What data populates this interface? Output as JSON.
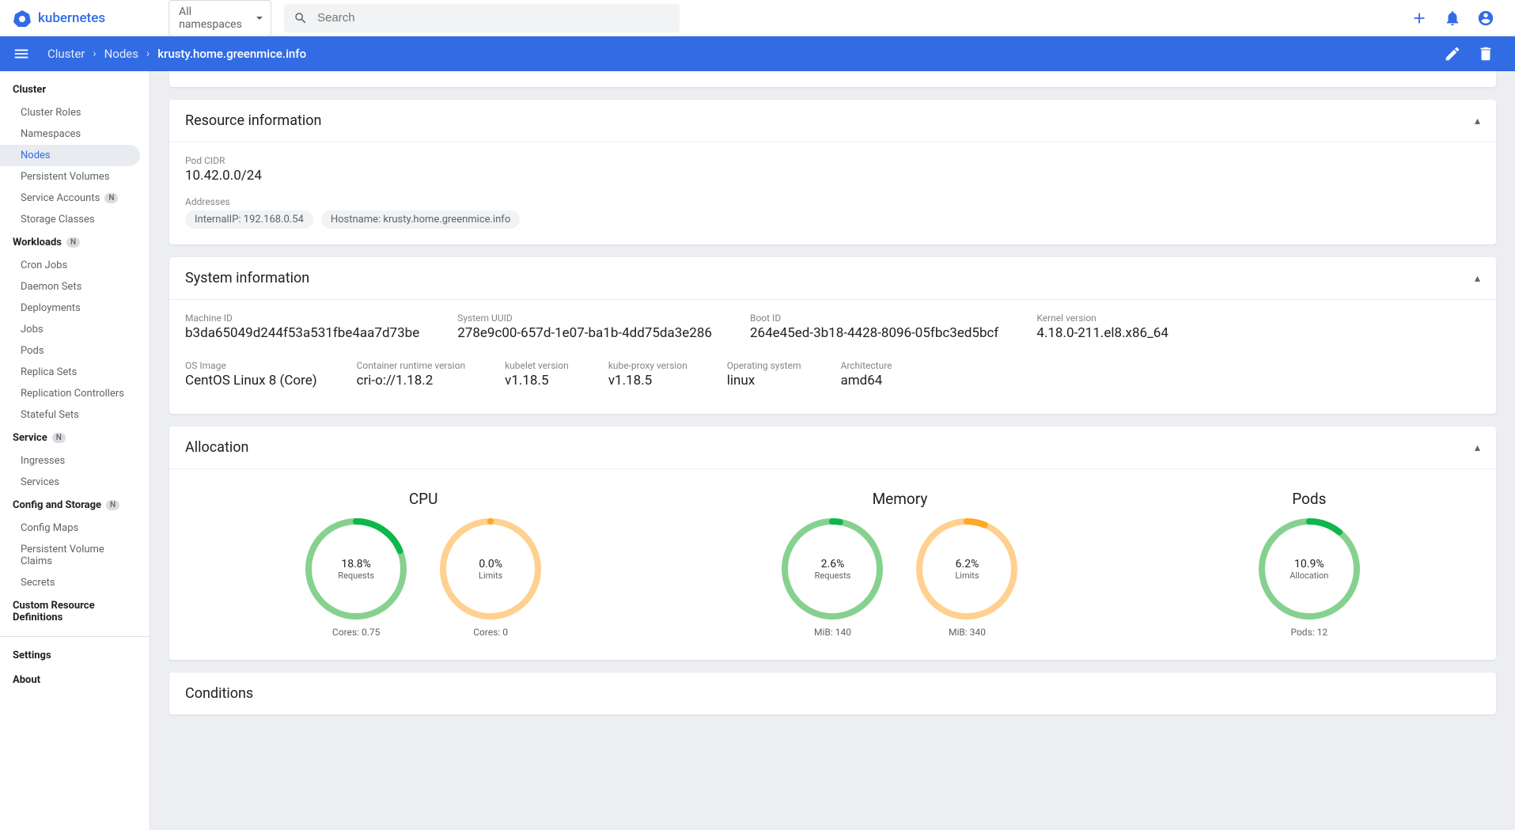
{
  "app": {
    "title": "kubernetes"
  },
  "header": {
    "namespace_selector": "All namespaces",
    "search_placeholder": "Search"
  },
  "breadcrumb": [
    {
      "label": "Cluster"
    },
    {
      "label": "Nodes"
    },
    {
      "label": "krusty.home.greenmice.info"
    }
  ],
  "sidebar": {
    "sections": [
      {
        "title": "Cluster",
        "badge": null,
        "items": [
          {
            "label": "Cluster Roles",
            "active": false
          },
          {
            "label": "Namespaces",
            "active": false
          },
          {
            "label": "Nodes",
            "active": true
          },
          {
            "label": "Persistent Volumes",
            "active": false
          },
          {
            "label": "Service Accounts",
            "active": false,
            "badge": "N"
          },
          {
            "label": "Storage Classes",
            "active": false
          }
        ]
      },
      {
        "title": "Workloads",
        "badge": "N",
        "items": [
          {
            "label": "Cron Jobs"
          },
          {
            "label": "Daemon Sets"
          },
          {
            "label": "Deployments"
          },
          {
            "label": "Jobs"
          },
          {
            "label": "Pods"
          },
          {
            "label": "Replica Sets"
          },
          {
            "label": "Replication Controllers"
          },
          {
            "label": "Stateful Sets"
          }
        ]
      },
      {
        "title": "Service",
        "badge": "N",
        "items": [
          {
            "label": "Ingresses"
          },
          {
            "label": "Services"
          }
        ]
      },
      {
        "title": "Config and Storage",
        "badge": "N",
        "items": [
          {
            "label": "Config Maps"
          },
          {
            "label": "Persistent Volume Claims"
          },
          {
            "label": "Secrets"
          }
        ]
      },
      {
        "title": "Custom Resource Definitions",
        "badge": null,
        "items": []
      }
    ],
    "footer": [
      {
        "label": "Settings"
      },
      {
        "label": "About"
      }
    ]
  },
  "resource_info": {
    "title": "Resource information",
    "pod_cidr_label": "Pod CIDR",
    "pod_cidr_value": "10.42.0.0/24",
    "addresses_label": "Addresses",
    "addresses": [
      "InternalIP: 192.168.0.54",
      "Hostname: krusty.home.greenmice.info"
    ]
  },
  "system_info": {
    "title": "System information",
    "row1": [
      {
        "label": "Machine ID",
        "value": "b3da65049d244f53a531fbe4aa7d73be"
      },
      {
        "label": "System UUID",
        "value": "278e9c00-657d-1e07-ba1b-4dd75da3e286"
      },
      {
        "label": "Boot ID",
        "value": "264e45ed-3b18-4428-8096-05fbc3ed5bcf"
      },
      {
        "label": "Kernel version",
        "value": "4.18.0-211.el8.x86_64"
      }
    ],
    "row2": [
      {
        "label": "OS Image",
        "value": "CentOS Linux 8 (Core)"
      },
      {
        "label": "Container runtime version",
        "value": "cri-o://1.18.2"
      },
      {
        "label": "kubelet version",
        "value": "v1.18.5"
      },
      {
        "label": "kube-proxy version",
        "value": "v1.18.5"
      },
      {
        "label": "Operating system",
        "value": "linux"
      },
      {
        "label": "Architecture",
        "value": "amd64"
      }
    ]
  },
  "allocation": {
    "title": "Allocation",
    "groups": [
      {
        "title": "CPU",
        "charts": [
          {
            "percent": 18.8,
            "percent_label": "18.8%",
            "sublabel": "Requests",
            "bottom": "Cores: 0.75",
            "ring_color": "#86d18f",
            "fill_color": "#0db74b"
          },
          {
            "percent": 0.0,
            "percent_label": "0.0%",
            "sublabel": "Limits",
            "bottom": "Cores: 0",
            "ring_color": "#ffd08f",
            "fill_color": "#ffa726"
          }
        ]
      },
      {
        "title": "Memory",
        "charts": [
          {
            "percent": 2.6,
            "percent_label": "2.6%",
            "sublabel": "Requests",
            "bottom": "MiB: 140",
            "ring_color": "#86d18f",
            "fill_color": "#0db74b"
          },
          {
            "percent": 6.2,
            "percent_label": "6.2%",
            "sublabel": "Limits",
            "bottom": "MiB: 340",
            "ring_color": "#ffd08f",
            "fill_color": "#ffa726"
          }
        ]
      },
      {
        "title": "Pods",
        "charts": [
          {
            "percent": 10.9,
            "percent_label": "10.9%",
            "sublabel": "Allocation",
            "bottom": "Pods: 12",
            "ring_color": "#86d18f",
            "fill_color": "#0db74b"
          }
        ]
      }
    ]
  },
  "conditions": {
    "title": "Conditions"
  },
  "colors": {
    "primary": "#326ce5",
    "background": "#edeef1",
    "card_bg": "#ffffff"
  }
}
